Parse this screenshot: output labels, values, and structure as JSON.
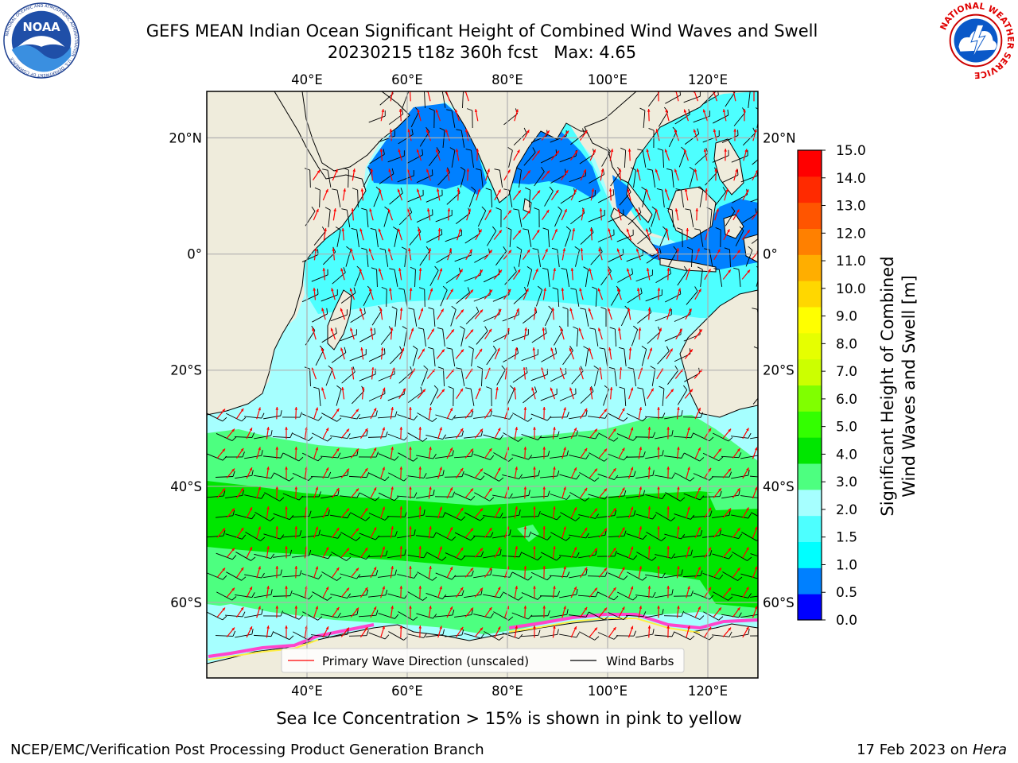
{
  "header": {
    "title_line1": "GEFS MEAN Indian Ocean Significant Height of Combined Wind Waves and Swell",
    "title_line2": "20230215 t18z 360h fcst   Max: 4.65"
  },
  "logos": {
    "left": {
      "icon": "noaa-logo-icon",
      "text": "NOAA",
      "ring_text": "NATIONAL OCEANIC AND ATMOSPHERIC ADMINISTRATION · U.S. DEPARTMENT OF COMMERCE"
    },
    "right": {
      "icon": "nws-logo-icon",
      "ring_text": "NATIONAL WEATHER SERVICE"
    }
  },
  "map": {
    "extent": {
      "lon": [
        20,
        130
      ],
      "lat": [
        -73,
        28
      ]
    },
    "lon_ticks": [
      "40°E",
      "60°E",
      "80°E",
      "100°E",
      "120°E"
    ],
    "lat_ticks": [
      "20°N",
      "0°",
      "20°S",
      "40°S",
      "60°S"
    ],
    "land_color": "#efecdc",
    "legend": {
      "wave_label": "Primary Wave Direction (unscaled)",
      "wave_color": "#ff0000",
      "barb_label": "Wind Barbs",
      "barb_color": "#000000"
    }
  },
  "colorbar": {
    "label_line1": "Significant Height of Combined",
    "label_line2": "Wind Waves and Swell [m]",
    "ticks": [
      "0.0",
      "0.5",
      "1.0",
      "1.5",
      "2.0",
      "3.0",
      "4.0",
      "5.0",
      "6.0",
      "7.0",
      "8.0",
      "9.0",
      "10.0",
      "11.0",
      "12.0",
      "13.0",
      "14.0",
      "15.0"
    ],
    "colors": [
      "#0000ff",
      "#0080ff",
      "#00ffff",
      "#4dffff",
      "#a6ffff",
      "#4dff80",
      "#00e600",
      "#33ff00",
      "#80ff00",
      "#ccff00",
      "#e6ff00",
      "#ffff00",
      "#ffd700",
      "#ffae00",
      "#ff8000",
      "#ff5500",
      "#ff2a00",
      "#ff0000"
    ]
  },
  "footer": {
    "note": "Sea Ice Concentration > 15% is shown in pink to yellow",
    "credit": "NCEP/EMC/Verification Post Processing Product Generation Branch",
    "date": "17 Feb 2023 on ",
    "machine": "Hera"
  }
}
